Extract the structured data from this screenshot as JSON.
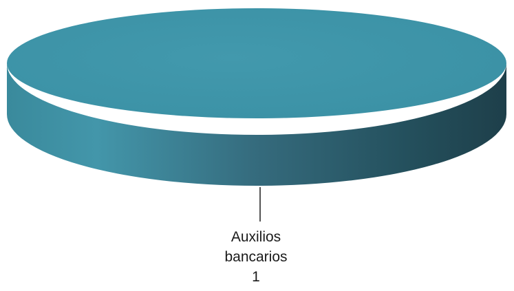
{
  "chart_data": {
    "type": "pie",
    "title": "",
    "slices": [
      {
        "label": "Auxilios bancarios",
        "value": 1,
        "color": "#3f95a8"
      }
    ],
    "data_label": {
      "category_lines": [
        "Auxilios",
        "bancarios"
      ],
      "value": "1"
    },
    "style": "3d",
    "legend": "none"
  }
}
